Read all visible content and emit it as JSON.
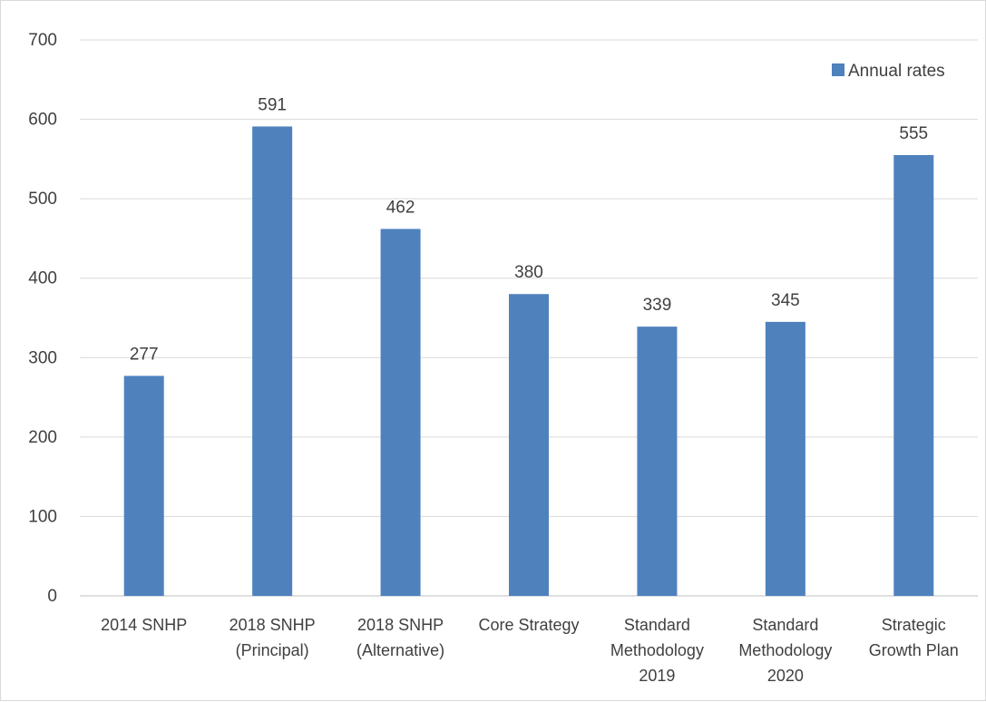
{
  "chart_data": {
    "type": "bar",
    "title": "",
    "xlabel": "",
    "ylabel": "",
    "ylim": [
      0,
      700
    ],
    "yticks": [
      0,
      100,
      200,
      300,
      400,
      500,
      600,
      700
    ],
    "grid": true,
    "legend_position": "top-right",
    "categories": [
      [
        "2014 SNHP"
      ],
      [
        "2018 SNHP",
        "(Principal)"
      ],
      [
        "2018 SNHP",
        "(Alternative)"
      ],
      [
        "Core Strategy"
      ],
      [
        "Standard",
        "Methodology",
        "2019"
      ],
      [
        "Standard",
        "Methodology",
        "2020"
      ],
      [
        "Strategic",
        "Growth Plan"
      ]
    ],
    "series": [
      {
        "name": "Annual rates",
        "color": "#4f81bd",
        "values": [
          277,
          591,
          462,
          380,
          339,
          345,
          555
        ]
      }
    ],
    "data_labels": true
  }
}
